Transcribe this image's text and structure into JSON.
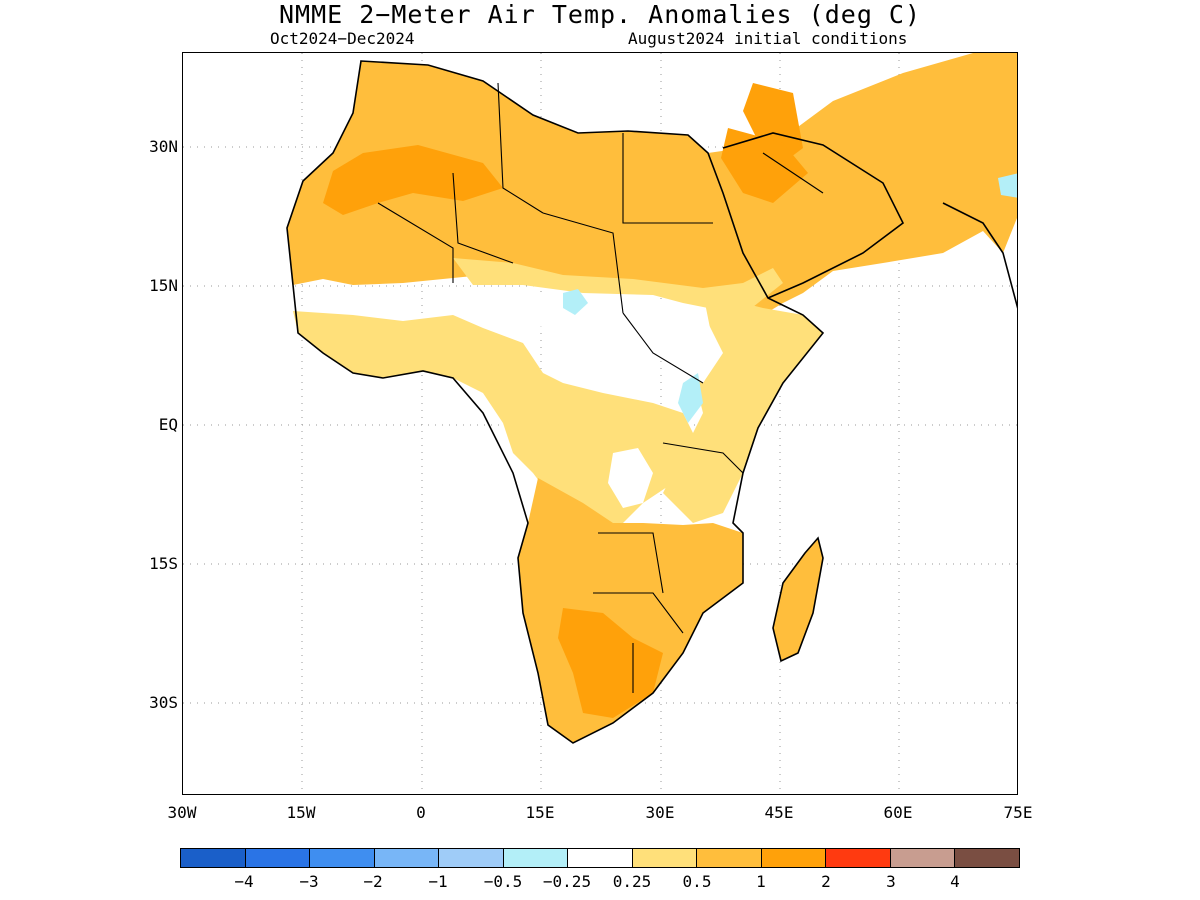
{
  "title": "NMME 2−Meter Air Temp. Anomalies (deg C)",
  "subtitle_left": "Oct2024−Dec2024",
  "subtitle_right": "August2024 initial conditions",
  "map": {
    "lat_ticks": [
      "30N",
      "15N",
      "EQ",
      "15S",
      "30S"
    ],
    "lon_ticks": [
      "30W",
      "15W",
      "0",
      "15E",
      "30E",
      "45E",
      "60E",
      "75E"
    ],
    "grid": true,
    "region": "Africa and Middle East"
  },
  "colorbar": {
    "colors": [
      "#1a5fc9",
      "#2a74e6",
      "#3f8ef0",
      "#78b6f7",
      "#9fccf8",
      "#b3eff8",
      "#ffffff",
      "#ffe07a",
      "#ffbe3c",
      "#ffa10a",
      "#ff3a10",
      "#c89d90",
      "#7a4e42"
    ],
    "labels": [
      "−4",
      "−3",
      "−2",
      "−1",
      "−0.5",
      "−0.25",
      "0.25",
      "0.5",
      "1",
      "2",
      "3",
      "4"
    ]
  }
}
